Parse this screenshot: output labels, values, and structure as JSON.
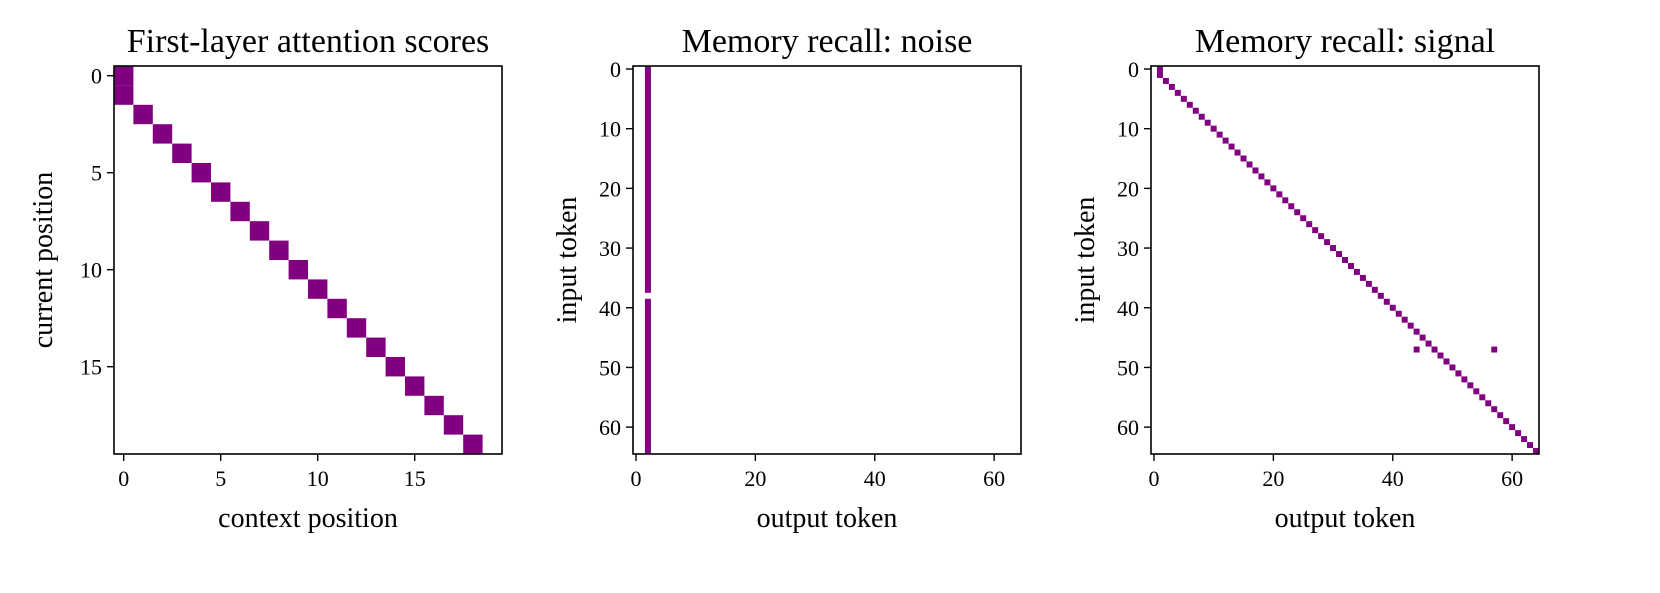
{
  "colors": {
    "cell": "#800080",
    "background": "#ffffff",
    "axis": "#000000"
  },
  "chart_data": [
    {
      "type": "heatmap",
      "title": "First-layer attention scores",
      "xlabel": "context position",
      "ylabel": "current position",
      "xlim": [
        -0.5,
        19.5
      ],
      "ylim": [
        19.5,
        -0.5
      ],
      "xticks": [
        0,
        5,
        10,
        15
      ],
      "yticks": [
        0,
        5,
        10,
        15
      ],
      "cells": [
        [
          0,
          0
        ],
        [
          0,
          1
        ],
        [
          1,
          2
        ],
        [
          2,
          3
        ],
        [
          3,
          4
        ],
        [
          4,
          5
        ],
        [
          5,
          6
        ],
        [
          6,
          7
        ],
        [
          7,
          8
        ],
        [
          8,
          9
        ],
        [
          9,
          10
        ],
        [
          10,
          11
        ],
        [
          11,
          12
        ],
        [
          12,
          13
        ],
        [
          13,
          14
        ],
        [
          14,
          15
        ],
        [
          15,
          16
        ],
        [
          16,
          17
        ],
        [
          17,
          18
        ],
        [
          18,
          19
        ]
      ]
    },
    {
      "type": "heatmap",
      "title": "Memory recall: noise",
      "xlabel": "output token",
      "ylabel": "input token",
      "xlim": [
        -0.5,
        64.5
      ],
      "ylim": [
        64.5,
        -0.5
      ],
      "xticks": [
        0,
        20,
        40,
        60
      ],
      "yticks": [
        0,
        10,
        20,
        30,
        40,
        50,
        60
      ],
      "column": 2,
      "column_gaps": [
        38
      ]
    },
    {
      "type": "heatmap",
      "title": "Memory recall: signal",
      "xlabel": "output token",
      "ylabel": "input token",
      "xlim": [
        -0.5,
        64.5
      ],
      "ylim": [
        64.5,
        -0.5
      ],
      "xticks": [
        0,
        20,
        40,
        60
      ],
      "yticks": [
        0,
        10,
        20,
        30,
        40,
        50,
        60
      ],
      "diagonal": {
        "from": 2,
        "to": 64
      },
      "extra_cells": [
        [
          1,
          0
        ],
        [
          1,
          1
        ],
        [
          44,
          47
        ],
        [
          57,
          47
        ]
      ]
    }
  ]
}
